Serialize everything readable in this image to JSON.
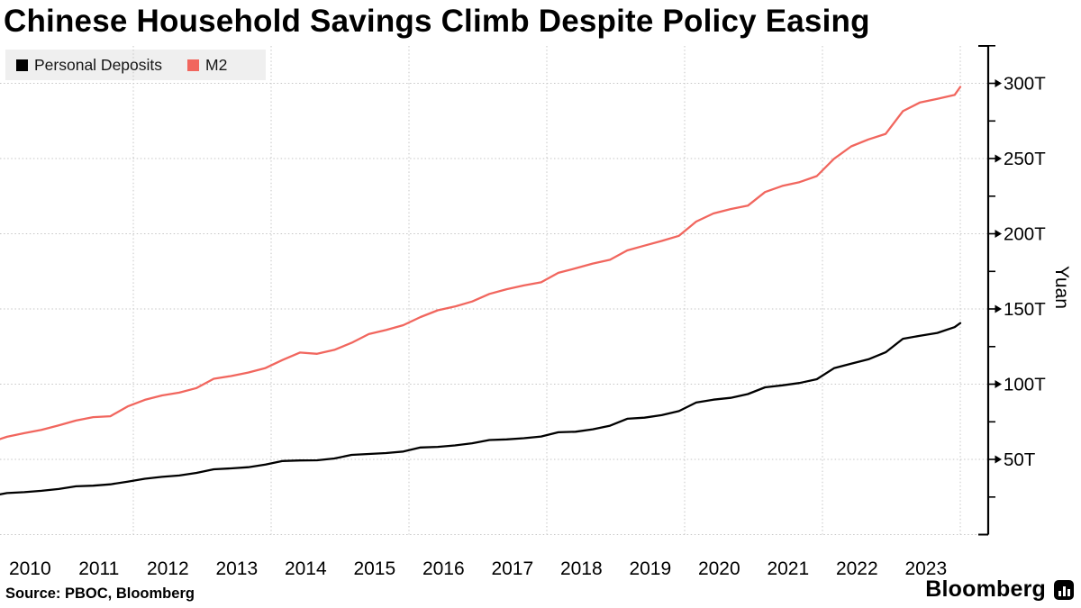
{
  "title": "Chinese Household Savings Climb Despite Policy Easing",
  "legend": {
    "items": [
      {
        "label": "Personal Deposits",
        "color": "#000000"
      },
      {
        "label": "M2",
        "color": "#f1665e"
      }
    ]
  },
  "source": "Source: PBOC, Bloomberg",
  "branding": {
    "logo_text": "Bloomberg",
    "logo_icon": "bar-chart-icon"
  },
  "chart_data": {
    "type": "line",
    "title": "Chinese Household Savings Climb Despite Policy Easing",
    "xlabel": "",
    "ylabel": "Yuan",
    "unit": "trillion yuan",
    "ylim": [
      0,
      325
    ],
    "xlim": [
      2010.05,
      2024.4
    ],
    "grid": "dotted",
    "legend_position": "top-left",
    "style": {
      "grid_color": "#c6c6c6",
      "axis_color": "#000000",
      "background": "#ffffff",
      "legend_background": "#efefef"
    },
    "y_axis": {
      "side": "right",
      "label": "Yuan",
      "major": [
        {
          "value": 50,
          "text": "50T"
        },
        {
          "value": 100,
          "text": "100T"
        },
        {
          "value": 150,
          "text": "150T"
        },
        {
          "value": 200,
          "text": "200T"
        },
        {
          "value": 250,
          "text": "250T"
        },
        {
          "value": 300,
          "text": "300T"
        }
      ],
      "minor": [
        25,
        75,
        125,
        175,
        225,
        275,
        325
      ],
      "gridlines": [
        0,
        50,
        100,
        150,
        200,
        250,
        300
      ]
    },
    "x_axis": {
      "labels": [
        {
          "pos": 2010.5,
          "text": "2010"
        },
        {
          "pos": 2011.5,
          "text": "2011"
        },
        {
          "pos": 2012.5,
          "text": "2012"
        },
        {
          "pos": 2013.5,
          "text": "2013"
        },
        {
          "pos": 2014.5,
          "text": "2014"
        },
        {
          "pos": 2015.5,
          "text": "2015"
        },
        {
          "pos": 2016.5,
          "text": "2016"
        },
        {
          "pos": 2017.5,
          "text": "2017"
        },
        {
          "pos": 2018.5,
          "text": "2018"
        },
        {
          "pos": 2019.5,
          "text": "2019"
        },
        {
          "pos": 2020.5,
          "text": "2020"
        },
        {
          "pos": 2021.5,
          "text": "2021"
        },
        {
          "pos": 2022.5,
          "text": "2022"
        },
        {
          "pos": 2023.5,
          "text": "2023"
        }
      ]
    },
    "grid_x_years": [
      2012,
      2014,
      2016,
      2018,
      2020,
      2022,
      2024
    ],
    "series": [
      {
        "name": "M2",
        "color": "#f1665e",
        "points": [
          [
            2010.0,
            62.5
          ],
          [
            2010.167,
            65.0
          ],
          [
            2010.417,
            67.4
          ],
          [
            2010.667,
            69.6
          ],
          [
            2010.917,
            72.6
          ],
          [
            2011.167,
            75.8
          ],
          [
            2011.417,
            78.1
          ],
          [
            2011.667,
            78.7
          ],
          [
            2011.917,
            85.2
          ],
          [
            2012.167,
            89.6
          ],
          [
            2012.417,
            92.5
          ],
          [
            2012.667,
            94.4
          ],
          [
            2012.917,
            97.4
          ],
          [
            2013.167,
            103.6
          ],
          [
            2013.417,
            105.4
          ],
          [
            2013.667,
            107.7
          ],
          [
            2013.917,
            110.7
          ],
          [
            2014.167,
            116.1
          ],
          [
            2014.417,
            121.0
          ],
          [
            2014.667,
            120.2
          ],
          [
            2014.917,
            122.8
          ],
          [
            2015.167,
            127.5
          ],
          [
            2015.417,
            133.3
          ],
          [
            2015.667,
            136.0
          ],
          [
            2015.917,
            139.2
          ],
          [
            2016.167,
            144.6
          ],
          [
            2016.417,
            149.1
          ],
          [
            2016.667,
            151.6
          ],
          [
            2016.917,
            155.0
          ],
          [
            2017.167,
            160.0
          ],
          [
            2017.417,
            163.1
          ],
          [
            2017.667,
            165.6
          ],
          [
            2017.917,
            167.7
          ],
          [
            2018.167,
            174.0
          ],
          [
            2018.417,
            177.0
          ],
          [
            2018.667,
            180.2
          ],
          [
            2018.917,
            182.7
          ],
          [
            2019.167,
            188.9
          ],
          [
            2019.417,
            192.1
          ],
          [
            2019.667,
            195.2
          ],
          [
            2019.917,
            198.6
          ],
          [
            2020.167,
            208.1
          ],
          [
            2020.417,
            213.5
          ],
          [
            2020.667,
            216.4
          ],
          [
            2020.917,
            218.7
          ],
          [
            2021.167,
            227.7
          ],
          [
            2021.417,
            231.8
          ],
          [
            2021.667,
            234.3
          ],
          [
            2021.917,
            238.3
          ],
          [
            2022.167,
            249.8
          ],
          [
            2022.417,
            258.1
          ],
          [
            2022.667,
            262.7
          ],
          [
            2022.917,
            266.4
          ],
          [
            2023.167,
            281.5
          ],
          [
            2023.417,
            287.3
          ],
          [
            2023.667,
            289.7
          ],
          [
            2023.917,
            292.3
          ],
          [
            2024.0,
            297.6
          ]
        ]
      },
      {
        "name": "Personal Deposits",
        "color": "#000000",
        "points": [
          [
            2010.0,
            26.2
          ],
          [
            2010.167,
            27.6
          ],
          [
            2010.417,
            28.2
          ],
          [
            2010.667,
            29.1
          ],
          [
            2010.917,
            30.3
          ],
          [
            2011.167,
            32.1
          ],
          [
            2011.417,
            32.5
          ],
          [
            2011.667,
            33.4
          ],
          [
            2011.917,
            35.2
          ],
          [
            2012.167,
            37.1
          ],
          [
            2012.417,
            38.4
          ],
          [
            2012.667,
            39.3
          ],
          [
            2012.917,
            41.0
          ],
          [
            2013.167,
            43.4
          ],
          [
            2013.417,
            44.0
          ],
          [
            2013.667,
            44.8
          ],
          [
            2013.917,
            46.5
          ],
          [
            2014.167,
            48.9
          ],
          [
            2014.417,
            49.3
          ],
          [
            2014.667,
            49.4
          ],
          [
            2014.917,
            50.6
          ],
          [
            2015.167,
            53.0
          ],
          [
            2015.417,
            53.6
          ],
          [
            2015.667,
            54.2
          ],
          [
            2015.917,
            55.2
          ],
          [
            2016.167,
            57.9
          ],
          [
            2016.417,
            58.3
          ],
          [
            2016.667,
            59.3
          ],
          [
            2016.917,
            60.7
          ],
          [
            2017.167,
            62.9
          ],
          [
            2017.417,
            63.3
          ],
          [
            2017.667,
            64.1
          ],
          [
            2017.917,
            65.2
          ],
          [
            2018.167,
            68.0
          ],
          [
            2018.417,
            68.4
          ],
          [
            2018.667,
            70.0
          ],
          [
            2018.917,
            72.4
          ],
          [
            2019.167,
            77.0
          ],
          [
            2019.417,
            77.7
          ],
          [
            2019.667,
            79.4
          ],
          [
            2019.917,
            82.1
          ],
          [
            2020.167,
            87.8
          ],
          [
            2020.417,
            89.7
          ],
          [
            2020.667,
            90.9
          ],
          [
            2020.917,
            93.4
          ],
          [
            2021.167,
            97.9
          ],
          [
            2021.417,
            99.2
          ],
          [
            2021.667,
            100.8
          ],
          [
            2021.917,
            103.3
          ],
          [
            2022.167,
            110.6
          ],
          [
            2022.417,
            113.6
          ],
          [
            2022.667,
            116.5
          ],
          [
            2022.917,
            121.2
          ],
          [
            2023.167,
            130.2
          ],
          [
            2023.417,
            132.2
          ],
          [
            2023.667,
            134.1
          ],
          [
            2023.917,
            137.9
          ],
          [
            2024.0,
            140.6
          ]
        ]
      }
    ]
  }
}
